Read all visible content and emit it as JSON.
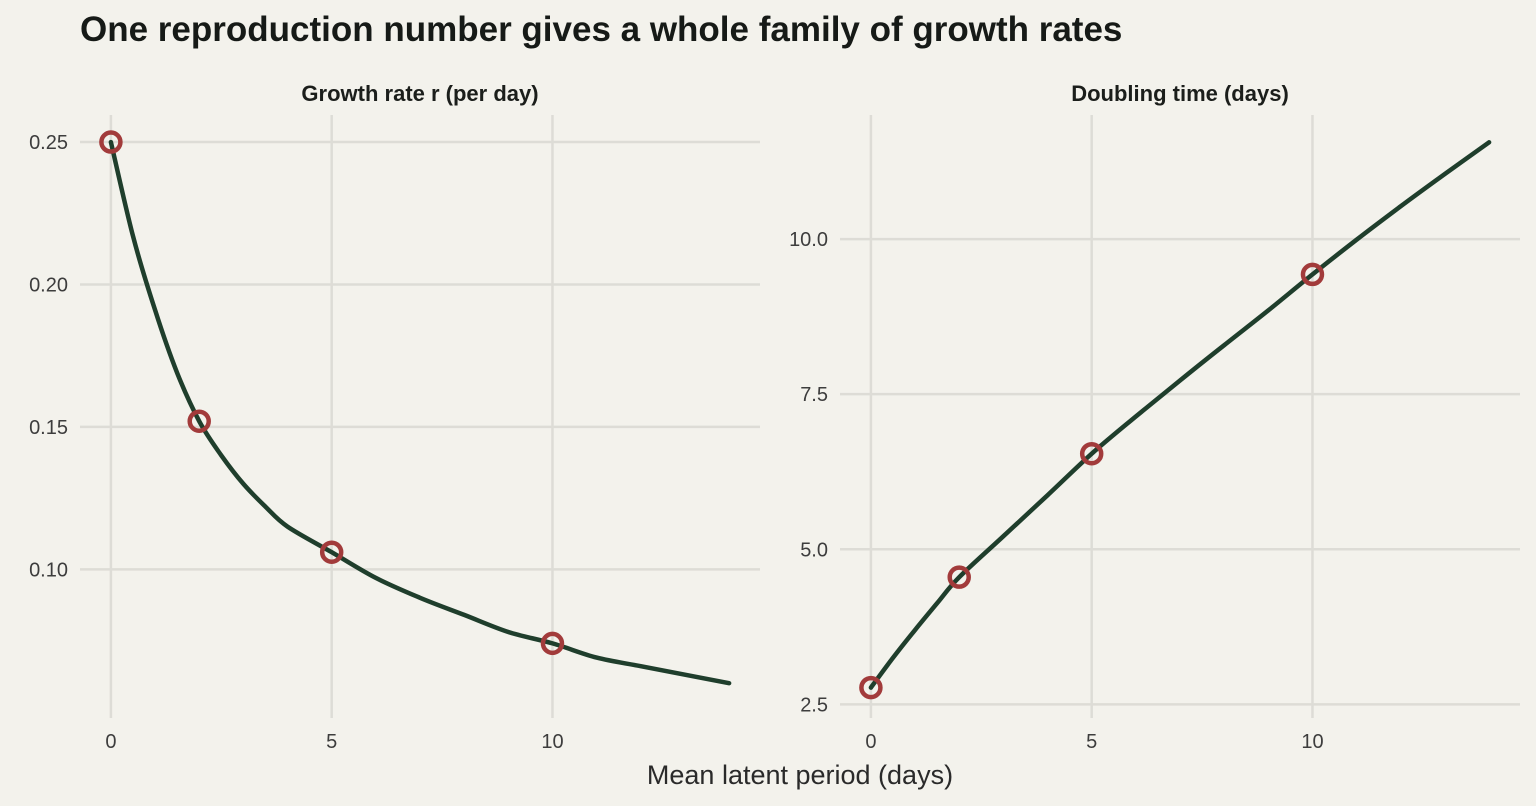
{
  "title": "One reproduction number gives a whole family of growth rates",
  "shared_xlabel": "Mean latent period (days)",
  "colors": {
    "background": "#f3f2ec",
    "line": "#1f3e2c",
    "marker": "#a23b3b",
    "grid": "#dddcd6"
  },
  "chart_data": [
    {
      "type": "line",
      "title": "Growth rate r (per day)",
      "xlabel": "",
      "ylabel": "",
      "xlim": [
        -0.7,
        14.7
      ],
      "ylim": [
        0.0478,
        0.2595
      ],
      "xticks": [
        0,
        5,
        10
      ],
      "xtick_labels": [
        "0",
        "5",
        "10"
      ],
      "yticks": [
        0.1,
        0.15,
        0.2,
        0.25
      ],
      "ytick_labels": [
        "0.10",
        "0.15",
        "0.20",
        "0.25"
      ],
      "grid": true,
      "series": [
        {
          "style": "line",
          "x": [
            0,
            0.5,
            1,
            1.5,
            2,
            2.5,
            3,
            3.5,
            4,
            5,
            6,
            7,
            8,
            9,
            10,
            11,
            12,
            13,
            14
          ],
          "y": [
            0.25,
            0.217,
            0.191,
            0.169,
            0.152,
            0.14,
            0.13,
            0.122,
            0.115,
            0.106,
            0.097,
            0.09,
            0.084,
            0.078,
            0.074,
            0.069,
            0.066,
            0.063,
            0.06
          ]
        },
        {
          "style": "points",
          "x": [
            0,
            2,
            5,
            10
          ],
          "y": [
            0.25,
            0.152,
            0.106,
            0.074
          ]
        }
      ]
    },
    {
      "type": "line",
      "title": "Doubling time (days)",
      "xlabel": "",
      "ylabel": "",
      "xlim": [
        -0.7,
        14.7
      ],
      "ylim": [
        2.28,
        12.0
      ],
      "xticks": [
        0,
        5,
        10
      ],
      "xtick_labels": [
        "0",
        "5",
        "10"
      ],
      "yticks": [
        2.5,
        5.0,
        7.5,
        10.0
      ],
      "ytick_labels": [
        "2.5",
        "5.0",
        "7.5",
        "10.0"
      ],
      "grid": true,
      "series": [
        {
          "style": "line",
          "x": [
            0,
            0.5,
            1,
            1.5,
            2,
            3,
            4,
            5,
            6,
            7,
            8,
            9,
            10,
            11,
            12,
            13,
            14
          ],
          "y": [
            2.77,
            3.25,
            3.7,
            4.13,
            4.55,
            5.21,
            5.87,
            6.54,
            7.14,
            7.72,
            8.29,
            8.85,
            9.43,
            9.99,
            10.53,
            11.05,
            11.56
          ]
        },
        {
          "style": "points",
          "x": [
            0,
            2,
            5,
            10
          ],
          "y": [
            2.77,
            4.55,
            6.54,
            9.43
          ]
        }
      ]
    }
  ]
}
